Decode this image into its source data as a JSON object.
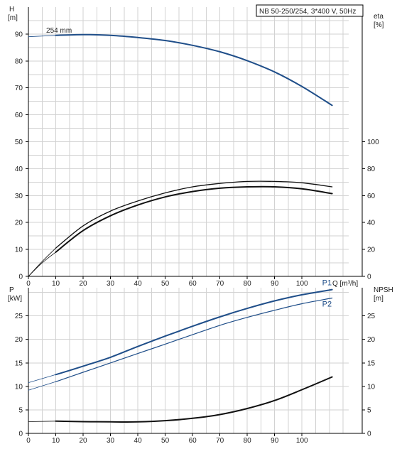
{
  "title_box": "NB 50-250/254, 3*400 V, 50Hz",
  "colors": {
    "blue": "#1f4e89",
    "black": "#111111",
    "grid": "#d2d2d2"
  },
  "chart_data": [
    {
      "type": "line",
      "x_label": "Q [m³/h]",
      "x_ticks": [
        0,
        10,
        20,
        30,
        40,
        50,
        60,
        70,
        80,
        90,
        100
      ],
      "xlim": [
        0,
        122
      ],
      "grid": true,
      "left_axis": {
        "label_top": "H",
        "label_unit": "[m]",
        "ticks": [
          0,
          10,
          20,
          30,
          40,
          50,
          60,
          70,
          80,
          90
        ],
        "ylim": [
          0,
          100
        ]
      },
      "right_axis": {
        "label_top": "eta",
        "label_unit": "[%]",
        "ticks": [
          0,
          20,
          40,
          60,
          80,
          100
        ],
        "ylim": [
          0,
          200
        ]
      },
      "annotations": [
        "254 mm"
      ],
      "series": [
        {
          "axis": "left",
          "color": "blue",
          "width": 2,
          "x": [
            10,
            20,
            30,
            40,
            50,
            60,
            70,
            80,
            90,
            100,
            111
          ],
          "y": [
            89.5,
            89.8,
            89.5,
            88.7,
            87.6,
            85.8,
            83.4,
            80.1,
            75.9,
            70.5,
            63.5
          ]
        },
        {
          "axis": "left",
          "color": "blue",
          "width": 0.8,
          "x": [
            0,
            10
          ],
          "y": [
            89,
            89.5
          ]
        },
        {
          "axis": "right",
          "color": "black",
          "width": 2,
          "x": [
            10,
            20,
            30,
            40,
            50,
            60,
            70,
            80,
            90,
            100,
            111
          ],
          "y": [
            18,
            34,
            45,
            53,
            59,
            63,
            65.5,
            66.5,
            66.5,
            65,
            61.5
          ]
        },
        {
          "axis": "right",
          "color": "black",
          "width": 1.3,
          "x": [
            10,
            20,
            30,
            40,
            50,
            60,
            70,
            80,
            90,
            100,
            111
          ],
          "y": [
            21,
            37.5,
            48.5,
            56,
            62,
            66.5,
            69,
            70.5,
            70.5,
            69.5,
            66.5
          ]
        },
        {
          "axis": "right",
          "color": "black",
          "width": 0.8,
          "x": [
            0,
            5,
            10
          ],
          "y": [
            0,
            10,
            18
          ]
        },
        {
          "axis": "right",
          "color": "black",
          "width": 0.8,
          "x": [
            0,
            5,
            10
          ],
          "y": [
            0,
            11,
            21
          ]
        }
      ]
    },
    {
      "type": "line",
      "x_ticks": [
        0,
        10,
        20,
        30,
        40,
        50,
        60,
        70,
        80,
        90,
        100
      ],
      "xlim": [
        0,
        122
      ],
      "grid": true,
      "left_axis": {
        "label_top": "P",
        "label_unit": "[kW]",
        "ticks": [
          0,
          5,
          10,
          15,
          20,
          25
        ],
        "ylim": [
          0,
          31
        ]
      },
      "right_axis": {
        "label_top": "NPSH",
        "label_unit": "[m]",
        "ticks": [
          0,
          5,
          10,
          15,
          20,
          25
        ],
        "ylim": [
          0,
          31
        ]
      },
      "series": [
        {
          "name": "P1",
          "axis": "left",
          "color": "blue",
          "width": 2,
          "x": [
            10,
            20,
            30,
            40,
            50,
            60,
            70,
            80,
            90,
            100,
            111
          ],
          "y": [
            12.5,
            14.3,
            16.2,
            18.5,
            20.7,
            22.8,
            24.8,
            26.6,
            28.2,
            29.5,
            30.6
          ]
        },
        {
          "name": "P2",
          "axis": "left",
          "color": "blue",
          "width": 1.2,
          "x": [
            10,
            20,
            30,
            40,
            50,
            60,
            70,
            80,
            90,
            100,
            111
          ],
          "y": [
            11,
            13,
            15,
            17,
            19,
            21,
            23,
            24.7,
            26.2,
            27.6,
            28.8
          ]
        },
        {
          "axis": "left",
          "color": "blue",
          "width": 0.8,
          "x": [
            0,
            10
          ],
          "y": [
            10.8,
            12.5
          ]
        },
        {
          "axis": "left",
          "color": "blue",
          "width": 0.8,
          "x": [
            0,
            10
          ],
          "y": [
            9.2,
            11
          ]
        },
        {
          "axis": "right",
          "color": "black",
          "width": 2,
          "x": [
            10,
            20,
            30,
            40,
            50,
            60,
            70,
            80,
            90,
            100,
            111
          ],
          "y": [
            2.6,
            2.5,
            2.45,
            2.45,
            2.7,
            3.2,
            4,
            5.3,
            7,
            9.3,
            12
          ]
        },
        {
          "axis": "right",
          "color": "black",
          "width": 0.8,
          "x": [
            0,
            10
          ],
          "y": [
            2.5,
            2.6
          ]
        }
      ]
    }
  ]
}
